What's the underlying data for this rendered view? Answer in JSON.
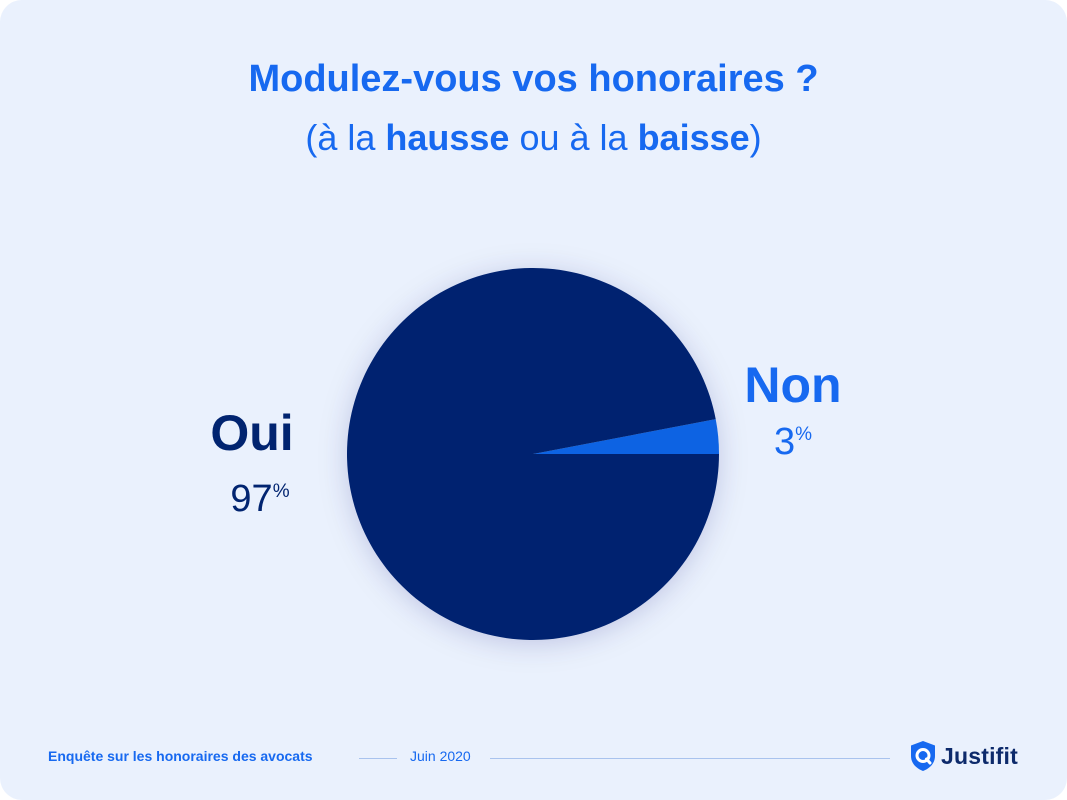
{
  "title": "Modulez-vous vos honoraires ?",
  "subtitle": {
    "open": "(à la ",
    "word1": "hausse",
    "middle": " ou à la ",
    "word2": "baisse",
    "close": ")"
  },
  "chart_data": {
    "type": "pie",
    "slices": [
      {
        "label": "Oui",
        "value": 97,
        "display": "97",
        "unit": "%",
        "color": "#012470"
      },
      {
        "label": "Non",
        "value": 3,
        "display": "3",
        "unit": "%",
        "color": "#0a63e3"
      }
    ]
  },
  "footer": {
    "survey": "Enquête sur les honoraires des avocats",
    "date": "Juin 2020"
  },
  "brand": {
    "name": "Justifit",
    "icon": "justifit-shield-logo-icon"
  },
  "colors": {
    "accent": "#1769f0",
    "navy": "#012470",
    "background": "#eaf1fd"
  }
}
